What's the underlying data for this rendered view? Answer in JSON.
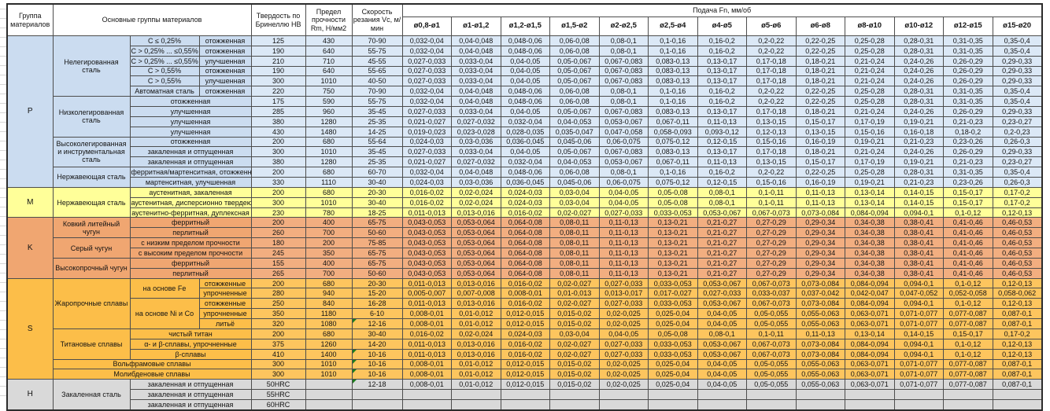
{
  "header": {
    "group": "Группа материалов",
    "materials": "Основные группы материалов",
    "hardness": "Твердость по Бринеллю НВ",
    "strength": "Предел прочности Rm, Н/мм2",
    "speed": "Скорость резания Vc, м/мин",
    "feed": "Подача Fn, мм/об"
  },
  "diameters": [
    "ø0,8-ø1",
    "ø1-ø1,2",
    "ø1,2-ø1,5",
    "ø1,5-ø2",
    "ø2-ø2,5",
    "ø2,5-ø4",
    "ø4-ø5",
    "ø5-ø6",
    "ø6-ø8",
    "ø8-ø10",
    "ø10-ø12",
    "ø12-ø15",
    "ø15-ø20"
  ],
  "feed_patterns": {
    "A": [
      "0,032-0,04",
      "0,04-0,048",
      "0,048-0,06",
      "0,06-0,08",
      "0,08-0,1",
      "0,1-0,16",
      "0,16-0,2",
      "0,2-0,22",
      "0,22-0,25",
      "0,25-0,28",
      "0,28-0,31",
      "0,31-0,35",
      "0,35-0,4"
    ],
    "B": [
      "0,027-0,033",
      "0,033-0,04",
      "0,04-0,05",
      "0,05-0,067",
      "0,067-0,083",
      "0,083-0,13",
      "0,13-0,17",
      "0,17-0,18",
      "0,18-0,21",
      "0,21-0,24",
      "0,24-0,26",
      "0,26-0,29",
      "0,29-0,33"
    ],
    "C": [
      "0,021-0,027",
      "0,027-0,032",
      "0,032-0,04",
      "0,04-0,053",
      "0,053-0,067",
      "0,067-0,11",
      "0,11-0,13",
      "0,13-0,15",
      "0,15-0,17",
      "0,17-0,19",
      "0,19-0,21",
      "0,21-0,23",
      "0,23-0,27"
    ],
    "D": [
      "0,019-0,023",
      "0,023-0,028",
      "0,028-0,035",
      "0,035-0,047",
      "0,047-0,058",
      "0,058-0,093",
      "0,093-0,12",
      "0,12-0,13",
      "0,13-0,15",
      "0,15-0,16",
      "0,16-0,18",
      "0,18-0,2",
      "0,2-0,23"
    ],
    "E": [
      "0,024-0,03",
      "0,03-0,036",
      "0,036-0,045",
      "0,045-0,06",
      "0,06-0,075",
      "0,075-0,12",
      "0,12-0,15",
      "0,15-0,16",
      "0,16-0,19",
      "0,19-0,21",
      "0,21-0,23",
      "0,23-0,26",
      "0,26-0,3"
    ],
    "M": [
      "0,016-0,02",
      "0,02-0,024",
      "0,024-0,03",
      "0,03-0,04",
      "0,04-0,05",
      "0,05-0,08",
      "0,08-0,1",
      "0,1-0,11",
      "0,11-0,13",
      "0,13-0,14",
      "0,14-0,15",
      "0,15-0,17",
      "0,17-0,2"
    ],
    "MD": [
      "0,011-0,013",
      "0,013-0,016",
      "0,016-0,02",
      "0,02-0,027",
      "0,027-0,033",
      "0,033-0,053",
      "0,053-0,067",
      "0,067-0,073",
      "0,073-0,084",
      "0,084-0,094",
      "0,094-0,1",
      "0,1-0,12",
      "0,12-0,13"
    ],
    "K": [
      "0,043-0,053",
      "0,053-0,064",
      "0,064-0,08",
      "0,08-0,11",
      "0,11-0,13",
      "0,13-0,21",
      "0,21-0,27",
      "0,27-0,29",
      "0,29-0,34",
      "0,34-0,38",
      "0,38-0,41",
      "0,41-0,46",
      "0,46-0,53"
    ],
    "SU": [
      "0,005-0,007",
      "0,007-0,008",
      "0,008-0,01",
      "0,01-0,013",
      "0,013-0,017",
      "0,017-0,027",
      "0,027-0,033",
      "0,033-0,037",
      "0,037-0,042",
      "0,042-0,047",
      "0,047-0,052",
      "0,052-0,058",
      "0,058-0,062"
    ],
    "SL": [
      "0,008-0,01",
      "0,01-0,012",
      "0,012-0,015",
      "0,015-0,02",
      "0,02-0,025",
      "0,025-0,04",
      "0,04-0,05",
      "0,05-0,055",
      "0,055-0,063",
      "0,063-0,071",
      "0,071-0,077",
      "0,077-0,087",
      "0,087-0,1"
    ],
    "EMPTY": [
      "",
      "",
      "",
      "",
      "",
      "",
      "",
      "",
      "",
      "",
      "",
      "",
      ""
    ]
  },
  "marker_color": "#1e7d1e",
  "groups": [
    {
      "code": "P",
      "label_bg": "#cbdcf0",
      "data_bg": "#dbe8f6",
      "rows": [
        {
          "b": {
            "text": "Нелегированная сталь",
            "span": 6
          },
          "c": "C ≤ 0,25%",
          "d": "отожженная",
          "hb": "125",
          "rm": "430",
          "vc": "70-90",
          "feed": "A"
        },
        {
          "c": "C > 0,25% ... ≤0,55%",
          "d": "отожженная",
          "hb": "190",
          "rm": "640",
          "vc": "55-75",
          "feed": "A"
        },
        {
          "c": "C > 0,25% ... ≤0,55%",
          "d": "улучшенная",
          "hb": "210",
          "rm": "710",
          "vc": "45-55",
          "feed": "B"
        },
        {
          "c": "C > 0,55%",
          "d": "отожженная",
          "hb": "190",
          "rm": "640",
          "vc": "55-65",
          "feed": "B"
        },
        {
          "c": "C > 0,55%",
          "d": "улучшенная",
          "hb": "300",
          "rm": "1010",
          "vc": "40-50",
          "feed": "B"
        },
        {
          "c": "Автоматная сталь",
          "d": "отожженная",
          "hb": "220",
          "rm": "750",
          "vc": "70-90",
          "feed": "A"
        },
        {
          "b": {
            "text": "Низколегированная сталь",
            "span": 4
          },
          "cd": "отожженная",
          "hb": "175",
          "rm": "590",
          "vc": "55-75",
          "feed": "A"
        },
        {
          "cd": "улучшенная",
          "hb": "285",
          "rm": "960",
          "vc": "35-45",
          "feed": "B"
        },
        {
          "cd": "улучшенная",
          "hb": "380",
          "rm": "1280",
          "vc": "25-35",
          "feed": "C"
        },
        {
          "cd": "улучшенная",
          "hb": "430",
          "rm": "1480",
          "vc": "14-25",
          "feed": "D"
        },
        {
          "b": {
            "text": "Высоколегированная и инструментальная сталь",
            "span": 3
          },
          "cd": "отожженная",
          "hb": "200",
          "rm": "680",
          "vc": "55-64",
          "feed": "E"
        },
        {
          "cd": "закаленная и отпущенная",
          "hb": "300",
          "rm": "1010",
          "vc": "35-45",
          "feed": "B"
        },
        {
          "cd": "закаленная и отпущенная",
          "hb": "380",
          "rm": "1280",
          "vc": "25-35",
          "feed": "C"
        },
        {
          "b": {
            "text": "Нержавеющая сталь",
            "span": 2
          },
          "cd": "ферритная/мартенситная, отожженная",
          "hb": "200",
          "rm": "680",
          "vc": "60-70",
          "feed": "A"
        },
        {
          "cd": "мартенситная, улучшенная",
          "hb": "330",
          "rm": "1110",
          "vc": "30-40",
          "feed": "E"
        }
      ]
    },
    {
      "code": "M",
      "label_bg": "#ffff99",
      "data_bg": "#ffff99",
      "rows": [
        {
          "b": {
            "text": "Нержавеющая сталь",
            "span": 3
          },
          "cd": "аустенитная, закаленная",
          "hb": "200",
          "rm": "680",
          "vc": "20-30",
          "feed": "M"
        },
        {
          "cd": "аустенитная, дисперсионно твердеющая",
          "hb": "300",
          "rm": "1010",
          "vc": "30-40",
          "feed": "M"
        },
        {
          "cd": "аустенитно-ферритная, дуплексная",
          "hb": "230",
          "rm": "780",
          "vc": "18-25",
          "feed": "MD"
        }
      ]
    },
    {
      "code": "K",
      "label_bg": "#f0a671",
      "data_bg": "#f2ae80",
      "rows": [
        {
          "b": {
            "text": "Ковкий литейный чугун",
            "span": 2
          },
          "cd": "ферритный",
          "hb": "200",
          "rm": "400",
          "vc": "65-75",
          "feed": "K"
        },
        {
          "cd": "перлитный",
          "hb": "260",
          "rm": "700",
          "vc": "50-60",
          "feed": "K"
        },
        {
          "b": {
            "text": "Серый чугун",
            "span": 2
          },
          "cd": "с низким пределом прочности",
          "hb": "180",
          "rm": "200",
          "vc": "75-85",
          "feed": "K"
        },
        {
          "cd": "с высоким пределом прочности",
          "hb": "245",
          "rm": "350",
          "vc": "65-75",
          "feed": "K"
        },
        {
          "b": {
            "text": "Высокопрочный чугун",
            "span": 2
          },
          "cd": "ферритный",
          "hb": "155",
          "rm": "400",
          "vc": "65-75",
          "feed": "K"
        },
        {
          "cd": "перлитный",
          "hb": "265",
          "rm": "700",
          "vc": "50-60",
          "feed": "K"
        }
      ]
    },
    {
      "code": "S",
      "label_bg": "#fcbe49",
      "data_bg": "#fdc55e",
      "rows": [
        {
          "b": {
            "text": "Жаропрочные сплавы",
            "span": 5
          },
          "c": {
            "text": "на основе Fe",
            "span": 2
          },
          "d": "отожженные",
          "hb": "200",
          "rm": "680",
          "vc": "20-30",
          "feed": "MD"
        },
        {
          "d": "упрочненные",
          "hb": "280",
          "rm": "940",
          "vc": "15-20",
          "feed": "SU"
        },
        {
          "c": {
            "text": "на основе Ni и Co",
            "span": 3
          },
          "d": "отожженные",
          "hb": "250",
          "rm": "840",
          "vc": "16-28",
          "feed": "MD"
        },
        {
          "d": "упрочненные",
          "hb": "350",
          "rm": "1180",
          "vc": "6-10",
          "feed": "SL"
        },
        {
          "d": "литьё",
          "hb": "320",
          "rm": "1080",
          "vc": "12-16",
          "mark": true,
          "feed": "SL"
        },
        {
          "b": {
            "text": "Титановые сплавы",
            "span": 3
          },
          "cd": "чистый титан",
          "hb": "200",
          "rm": "680",
          "vc": "30-40",
          "feed": "M"
        },
        {
          "cd": "α- и β-сплавы, упрочненные",
          "hb": "375",
          "rm": "1260",
          "vc": "14-20",
          "feed": "MD"
        },
        {
          "cd": "β-сплавы",
          "hb": "410",
          "rm": "1400",
          "vc": "10-16",
          "mark": true,
          "feed": "MD"
        },
        {
          "bcd": "Вольфрамовые сплавы",
          "hb": "300",
          "rm": "1010",
          "vc": "10-16",
          "mark": true,
          "feed": "SL"
        },
        {
          "bcd": "Молибденовые сплавы",
          "hb": "300",
          "rm": "1010",
          "vc": "10-16",
          "mark": true,
          "feed": "SL"
        }
      ]
    },
    {
      "code": "H",
      "label_bg": "#d9d9d9",
      "data_bg": "#d9d9d9",
      "rows": [
        {
          "b": {
            "text": "Закаленная сталь",
            "span": 3
          },
          "cd": "закаленная и отпущенная",
          "hb": "50HRC",
          "rm": "",
          "vc": "12-18",
          "mark": true,
          "feed": "SL"
        },
        {
          "cd": "закаленная и отпущенная",
          "hb": "55HRC",
          "rm": "",
          "vc": "",
          "feed": "EMPTY"
        },
        {
          "cd": "закаленная и отпущенная",
          "hb": "60HRC",
          "rm": "",
          "vc": "",
          "feed": "EMPTY"
        }
      ]
    }
  ]
}
